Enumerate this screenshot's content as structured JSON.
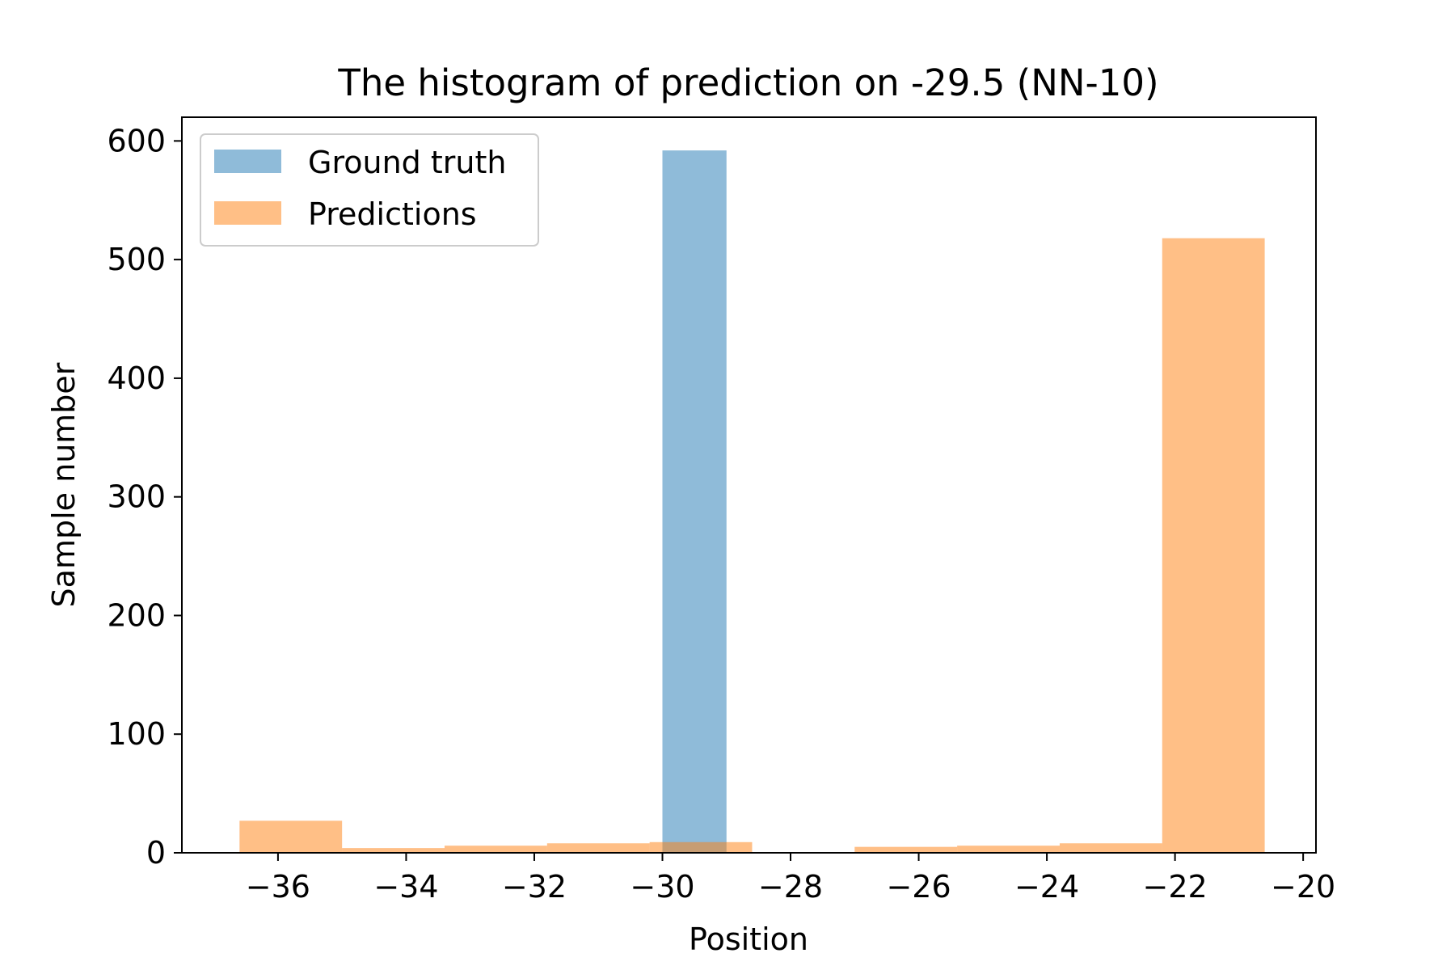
{
  "chart_data": {
    "type": "bar",
    "title": "The histogram of prediction on -29.5 (NN-10)",
    "xlabel": "Position",
    "ylabel": "Sample number",
    "xlim": [
      -37.5,
      -19.8
    ],
    "ylim": [
      0,
      620
    ],
    "xticks": [
      -36,
      -34,
      -32,
      -30,
      -28,
      -26,
      -24,
      -22,
      -20
    ],
    "xtick_labels": [
      "−36",
      "−34",
      "−32",
      "−30",
      "−28",
      "−26",
      "−24",
      "−22",
      "−20"
    ],
    "yticks": [
      0,
      100,
      200,
      300,
      400,
      500,
      600
    ],
    "ytick_labels": [
      "0",
      "100",
      "200",
      "300",
      "400",
      "500",
      "600"
    ],
    "legend_position": "upper-left",
    "grid": false,
    "series": [
      {
        "name": "Ground truth",
        "color": "#1f77b4",
        "opacity": 0.5,
        "bins": [
          {
            "x0": -30.0,
            "x1": -29.0,
            "value": 592
          }
        ]
      },
      {
        "name": "Predictions",
        "color": "#ff7f0e",
        "opacity": 0.5,
        "bins": [
          {
            "x0": -36.6,
            "x1": -35.0,
            "value": 27
          },
          {
            "x0": -35.0,
            "x1": -33.4,
            "value": 4
          },
          {
            "x0": -33.4,
            "x1": -31.8,
            "value": 6
          },
          {
            "x0": -31.8,
            "x1": -30.2,
            "value": 8
          },
          {
            "x0": -30.2,
            "x1": -28.6,
            "value": 9
          },
          {
            "x0": -28.6,
            "x1": -27.0,
            "value": 0
          },
          {
            "x0": -27.0,
            "x1": -25.4,
            "value": 5
          },
          {
            "x0": -25.4,
            "x1": -23.8,
            "value": 6
          },
          {
            "x0": -23.8,
            "x1": -22.2,
            "value": 8
          },
          {
            "x0": -22.2,
            "x1": -20.6,
            "value": 518
          }
        ]
      }
    ]
  }
}
